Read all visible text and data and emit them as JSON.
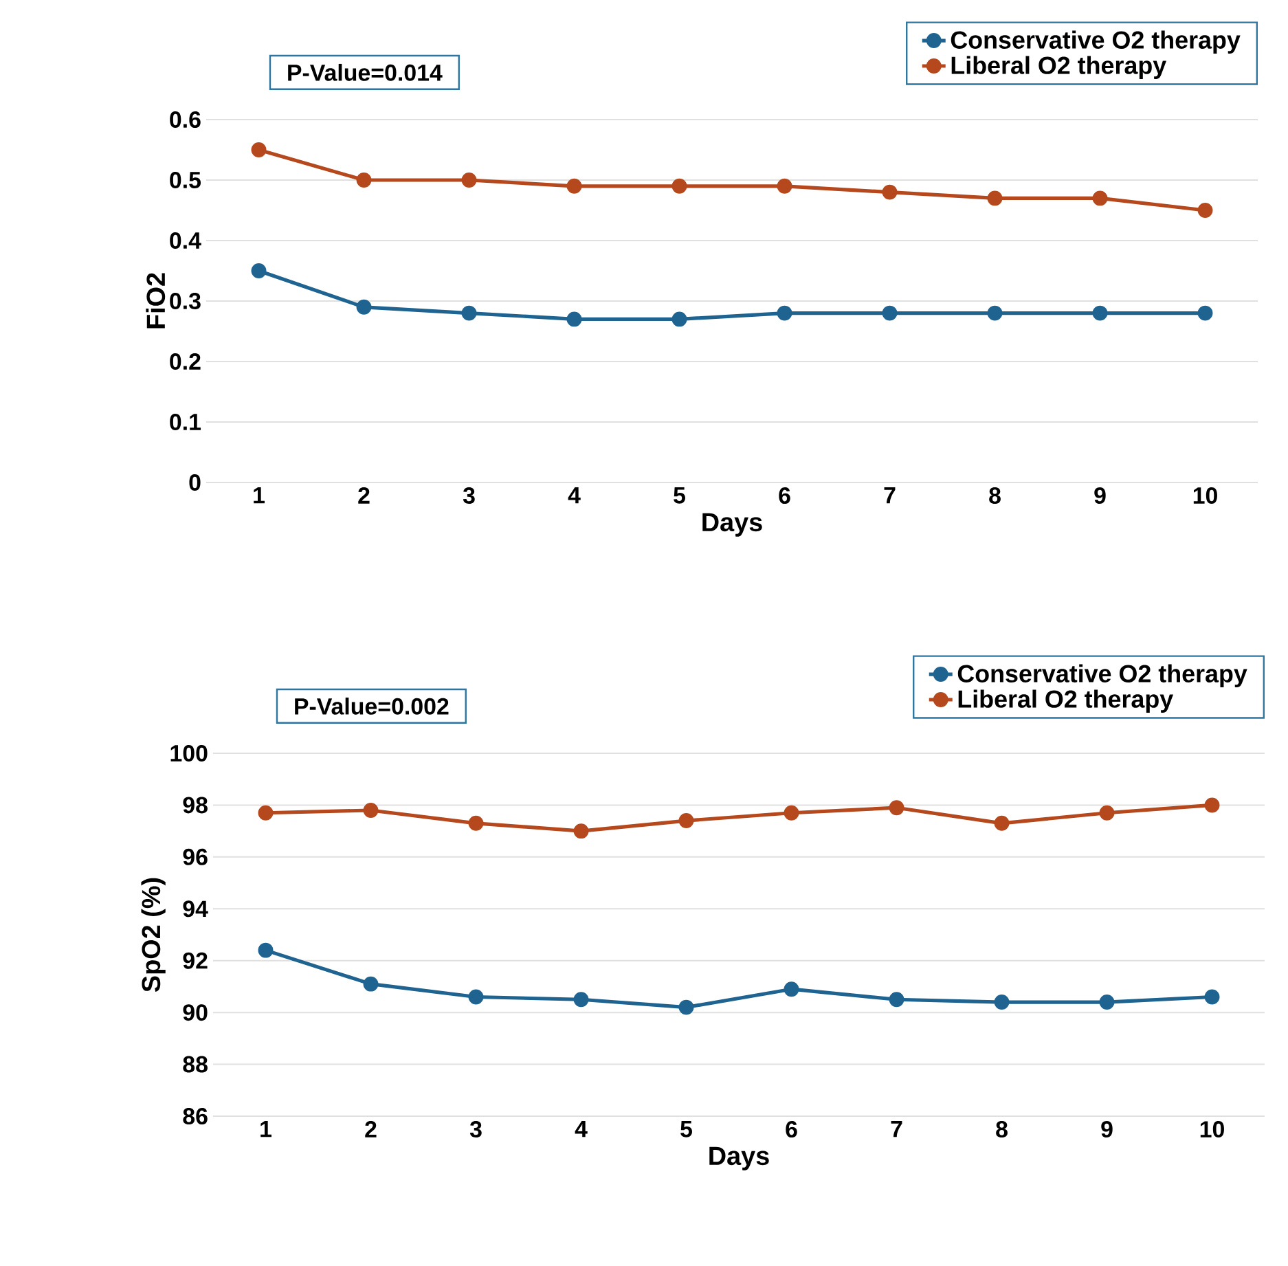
{
  "chart_data": [
    {
      "type": "line",
      "ylabel": "FiO2",
      "xlabel": "Days",
      "annotations": [
        "P-Value=0.014"
      ],
      "categories": [
        "1",
        "2",
        "3",
        "4",
        "5",
        "6",
        "7",
        "8",
        "9",
        "10"
      ],
      "series": [
        {
          "name": "Conservative O2 therapy",
          "color": "#1f6391",
          "values": [
            0.35,
            0.29,
            0.28,
            0.27,
            0.27,
            0.28,
            0.28,
            0.28,
            0.28,
            0.28
          ]
        },
        {
          "name": "Liberal O2 therapy",
          "color": "#b5481c",
          "values": [
            0.55,
            0.5,
            0.5,
            0.49,
            0.49,
            0.49,
            0.48,
            0.47,
            0.47,
            0.45
          ]
        }
      ],
      "ylim": [
        0,
        0.6
      ],
      "yticks": [
        0,
        0.1,
        0.2,
        0.3,
        0.4,
        0.5,
        0.6
      ],
      "grid": "y",
      "legend": "top right",
      "marker": "circle",
      "line_style": "solid"
    },
    {
      "type": "line",
      "ylabel": "SpO2 (%)",
      "xlabel": "Days",
      "annotations": [
        "P-Value=0.002"
      ],
      "categories": [
        "1",
        "2",
        "3",
        "4",
        "5",
        "6",
        "7",
        "8",
        "9",
        "10"
      ],
      "series": [
        {
          "name": "Conservative O2 therapy",
          "color": "#1f6391",
          "values": [
            92.4,
            91.1,
            90.6,
            90.5,
            90.2,
            90.9,
            90.5,
            90.4,
            90.4,
            90.6
          ]
        },
        {
          "name": "Liberal O2 therapy",
          "color": "#b5481c",
          "values": [
            97.7,
            97.8,
            97.3,
            97.0,
            97.4,
            97.7,
            97.9,
            97.3,
            97.7,
            98.0
          ]
        }
      ],
      "ylim": [
        86,
        100
      ],
      "yticks": [
        86,
        88,
        90,
        92,
        94,
        96,
        98,
        100
      ],
      "grid": "y",
      "legend": "top right",
      "marker": "circle",
      "line_style": "solid"
    }
  ]
}
